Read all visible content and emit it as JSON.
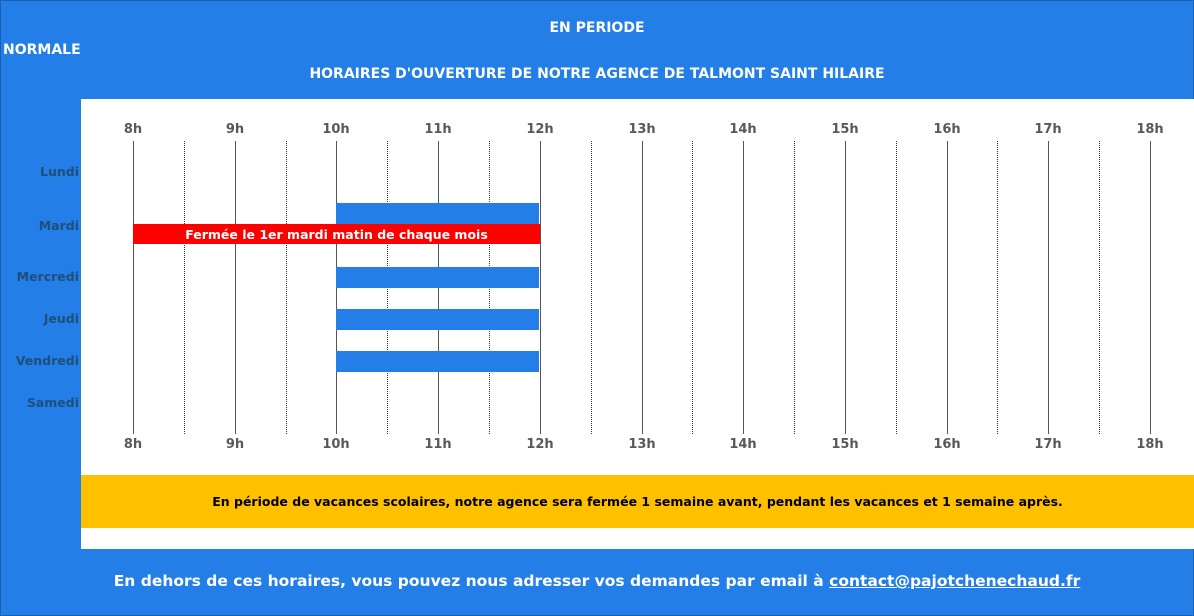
{
  "header": {
    "line1": "EN PERIODE",
    "line1b": "NORMALE",
    "line2": "HORAIRES D'OUVERTURE DE NOTRE AGENCE DE TALMONT SAINT HILAIRE"
  },
  "chart_data": {
    "type": "table",
    "hours": [
      "8h",
      "9h",
      "10h",
      "11h",
      "12h",
      "13h",
      "14h",
      "15h",
      "16h",
      "17h",
      "18h"
    ],
    "days": [
      "Lundi",
      "Mardi",
      "Mercredi",
      "Jeudi",
      "Vendredi",
      "Samedi"
    ],
    "open_slots": [
      {
        "day": "Mardi",
        "start": 10,
        "end": 12
      },
      {
        "day": "Mercredi",
        "start": 10,
        "end": 12
      },
      {
        "day": "Jeudi",
        "start": 10,
        "end": 12
      },
      {
        "day": "Vendredi",
        "start": 10,
        "end": 12
      }
    ],
    "closure": {
      "day": "Mardi",
      "start": 8,
      "end": 12,
      "label": "Fermée le 1er mardi matin de chaque mois"
    },
    "colors": {
      "open": "#237ee8",
      "closed": "#ff0000",
      "holiday_banner": "#ffc000",
      "background": "#237ee8"
    }
  },
  "holiday_notice": "En période de vacances scolaires, notre agence sera fermée 1 semaine avant, pendant les vacances et 1 semaine après.",
  "footer": {
    "text": "En dehors de ces horaires, vous pouvez nous adresser vos demandes par email à ",
    "email": "contact@pajotchenechaud.fr"
  }
}
